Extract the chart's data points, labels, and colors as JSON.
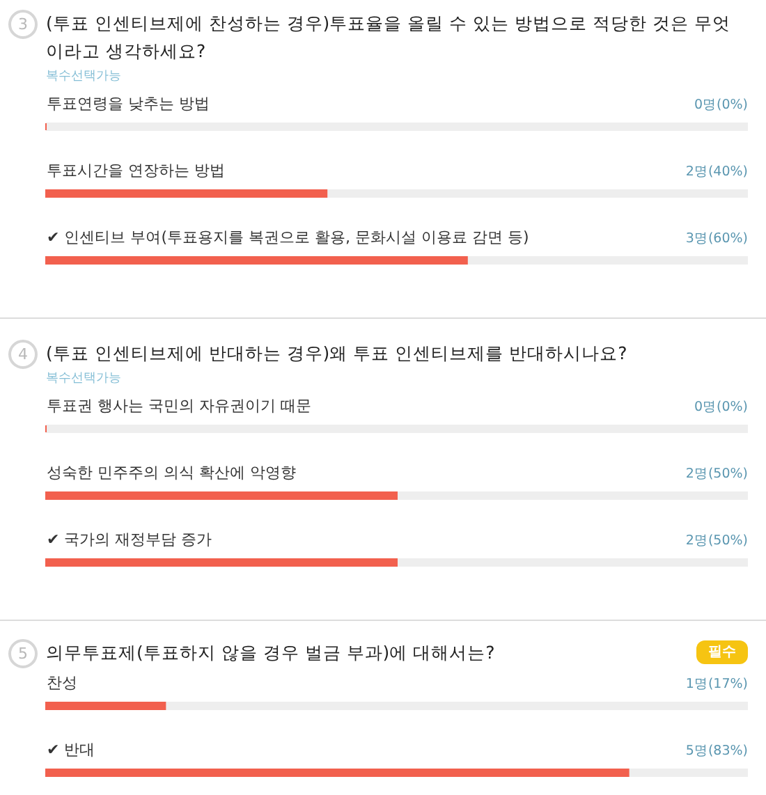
{
  "chart_data": [
    {
      "type": "bar",
      "orientation": "horizontal",
      "title": "(투표 인센티브제에 찬성하는 경우)투표율을 올릴 수 있는 방법으로 적당한 것은 무엇이라고 생각하세요?",
      "subtitle": "복수선택가능",
      "annotations": [
        "3"
      ],
      "categories": [
        "투표연령을 낮추는 방법",
        "투표시간을 연장하는 방법",
        "✔ 인센티브 부여(투표용지를 복권으로 활용, 문화시설 이용료 감면 등)"
      ],
      "series": [
        {
          "color": "#f2604e",
          "values": [
            0,
            40,
            60
          ],
          "value_labels": [
            "0명(0%)",
            "2명(40%)",
            "3명(60%)"
          ]
        }
      ],
      "bands": [
        {
          "axis": "x",
          "from": 0,
          "to": 100,
          "color": "#eeeeee"
        }
      ],
      "xlim": [
        0,
        100
      ]
    },
    {
      "type": "bar",
      "orientation": "horizontal",
      "title": "(투표 인센티브제에 반대하는 경우)왜 투표 인센티브제를 반대하시나요?",
      "subtitle": "복수선택가능",
      "annotations": [
        "4"
      ],
      "categories": [
        "투표권 행사는 국민의 자유권이기 때문",
        "성숙한 민주주의 의식 확산에 악영향",
        "✔ 국가의 재정부담 증가"
      ],
      "series": [
        {
          "color": "#f2604e",
          "values": [
            0,
            50,
            50
          ],
          "value_labels": [
            "0명(0%)",
            "2명(50%)",
            "2명(50%)"
          ]
        }
      ],
      "bands": [
        {
          "axis": "x",
          "from": 0,
          "to": 100,
          "color": "#eeeeee"
        }
      ],
      "xlim": [
        0,
        100
      ]
    },
    {
      "type": "bar",
      "orientation": "horizontal",
      "title": "의무투표제(투표하지 않을 경우 벌금 부과)에 대해서는?",
      "annotations": [
        "5",
        "필수"
      ],
      "categories": [
        "찬성",
        "✔ 반대"
      ],
      "series": [
        {
          "color": "#f2604e",
          "values": [
            17,
            83
          ],
          "value_labels": [
            "1명(17%)",
            "5명(83%)"
          ]
        }
      ],
      "bands": [
        {
          "axis": "x",
          "from": 0,
          "to": 100,
          "color": "#eeeeee"
        }
      ],
      "xlim": [
        0,
        100
      ]
    }
  ]
}
